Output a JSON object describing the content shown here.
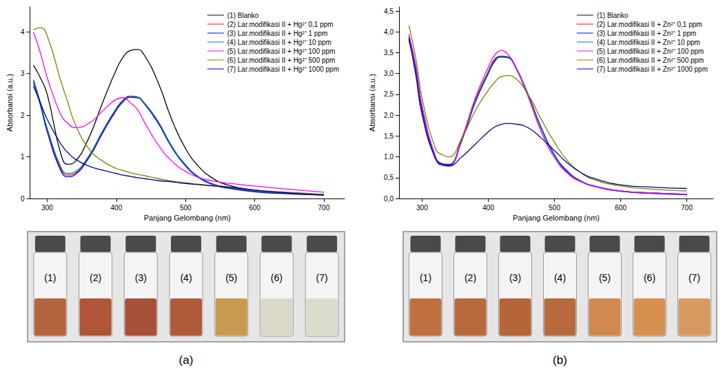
{
  "chart_data": [
    {
      "type": "line",
      "x_label": "Panjang Gelombang (nm)",
      "y_label": "Absorbansi (a.u.)",
      "xlim": [
        275,
        730
      ],
      "xticks": [
        300,
        400,
        500,
        600,
        700
      ],
      "ylim": [
        0,
        4.6
      ],
      "yticks": [
        0,
        1,
        2,
        3,
        4
      ],
      "grid": false,
      "legend": "upper right",
      "x": [
        280,
        290,
        300,
        320,
        330,
        340,
        360,
        380,
        400,
        410,
        420,
        430,
        440,
        460,
        480,
        500,
        520,
        540,
        560,
        600,
        650,
        700
      ],
      "series": [
        {
          "name": "(1) Blanko",
          "color": "#000000",
          "values": [
            3.2,
            2.9,
            2.5,
            1.05,
            0.82,
            0.88,
            1.45,
            2.3,
            3.1,
            3.4,
            3.55,
            3.58,
            3.45,
            2.8,
            1.9,
            1.2,
            0.75,
            0.48,
            0.33,
            0.2,
            0.13,
            0.1
          ]
        },
        {
          "name": "(2) Lar.modifikasi II + Hg²⁺ 0,1 ppm",
          "color": "#ff0000",
          "values": [
            2.85,
            2.3,
            1.65,
            0.7,
            0.56,
            0.6,
            1.0,
            1.6,
            2.15,
            2.35,
            2.45,
            2.44,
            2.3,
            1.85,
            1.25,
            0.8,
            0.5,
            0.34,
            0.26,
            0.17,
            0.12,
            0.09
          ]
        },
        {
          "name": "(3) Lar.modifikasi II + Hg²⁺ 1 ppm",
          "color": "#0000ff",
          "values": [
            2.8,
            2.25,
            1.6,
            0.65,
            0.52,
            0.57,
            0.97,
            1.57,
            2.12,
            2.33,
            2.43,
            2.42,
            2.28,
            1.82,
            1.23,
            0.78,
            0.49,
            0.33,
            0.25,
            0.16,
            0.11,
            0.08
          ]
        },
        {
          "name": "(4) Lar.modifikasi II + Hg²⁺ 10 ppm",
          "color": "#008080",
          "values": [
            2.85,
            2.3,
            1.68,
            0.74,
            0.6,
            0.64,
            1.02,
            1.62,
            2.17,
            2.37,
            2.46,
            2.44,
            2.3,
            1.86,
            1.26,
            0.81,
            0.51,
            0.35,
            0.27,
            0.18,
            0.13,
            0.1
          ]
        },
        {
          "name": "(5) Lar.modifikasi II + Hg²⁺ 100 ppm",
          "color": "#ff00ff",
          "values": [
            4.0,
            3.5,
            2.9,
            2.0,
            1.8,
            1.7,
            1.8,
            2.1,
            2.38,
            2.42,
            2.3,
            2.15,
            1.85,
            1.3,
            0.9,
            0.65,
            0.5,
            0.42,
            0.37,
            0.3,
            0.22,
            0.15
          ]
        },
        {
          "name": "(6) Lar.modifikasi II + Hg²⁺ 500 ppm",
          "color": "#808000",
          "values": [
            4.05,
            4.1,
            3.9,
            2.8,
            2.3,
            1.8,
            1.2,
            0.9,
            0.72,
            0.67,
            0.62,
            0.58,
            0.55,
            0.48,
            0.42,
            0.38,
            0.34,
            0.31,
            0.28,
            0.2,
            0.15,
            0.1
          ]
        },
        {
          "name": "(7) Lar.modifikasi II + Hg²⁺ 1000 ppm",
          "color": "#000080",
          "values": [
            2.7,
            2.3,
            1.9,
            1.3,
            1.1,
            0.95,
            0.78,
            0.68,
            0.6,
            0.56,
            0.53,
            0.5,
            0.48,
            0.43,
            0.4,
            0.36,
            0.33,
            0.3,
            0.28,
            0.2,
            0.13,
            0.08
          ]
        }
      ]
    },
    {
      "type": "line",
      "x_label": "Panjang Gelombang (nm)",
      "y_label": "Absorbansi (a.u.)",
      "xlim": [
        265,
        740
      ],
      "xticks": [
        300,
        400,
        500,
        600,
        700
      ],
      "ylim": [
        0,
        4.6
      ],
      "yticks": [
        {
          "value": 0,
          "label": "0,0"
        },
        {
          "value": 0.5,
          "label": "0,5"
        },
        {
          "value": 1,
          "label": "1,0"
        },
        {
          "value": 1.5,
          "label": "1,5"
        },
        {
          "value": 2,
          "label": "2,0"
        },
        {
          "value": 2.5,
          "label": "2,5"
        },
        {
          "value": 3,
          "label": "3,0"
        },
        {
          "value": 3.5,
          "label": "3,5"
        },
        {
          "value": 4,
          "label": "4,0"
        },
        {
          "value": 4.5,
          "label": "4,5"
        }
      ],
      "grid": false,
      "legend": "upper right",
      "x": [
        280,
        290,
        300,
        320,
        330,
        340,
        360,
        380,
        400,
        410,
        420,
        430,
        440,
        460,
        480,
        500,
        520,
        540,
        560,
        600,
        650,
        700
      ],
      "series": [
        {
          "name": "(1) Blanko",
          "color": "#000000",
          "values": [
            3.9,
            3.2,
            2.2,
            1.0,
            0.82,
            0.8,
            1.4,
            2.3,
            3.0,
            3.3,
            3.4,
            3.38,
            3.2,
            2.5,
            1.7,
            1.05,
            0.65,
            0.42,
            0.3,
            0.18,
            0.13,
            0.1
          ]
        },
        {
          "name": "(2) Lar.modifikasi II + Zn²⁺ 0,1 ppm",
          "color": "#ff0000",
          "values": [
            3.85,
            3.15,
            2.15,
            1.0,
            0.82,
            0.82,
            1.45,
            2.35,
            3.05,
            3.35,
            3.42,
            3.4,
            3.2,
            2.5,
            1.7,
            1.05,
            0.65,
            0.42,
            0.3,
            0.18,
            0.13,
            0.1
          ]
        },
        {
          "name": "(3) Lar.modifikasi II + Zn²⁺ 1 ppm",
          "color": "#0000ff",
          "values": [
            3.8,
            3.1,
            2.1,
            0.98,
            0.8,
            0.8,
            1.42,
            2.33,
            3.03,
            3.33,
            3.4,
            3.38,
            3.18,
            2.48,
            1.68,
            1.03,
            0.63,
            0.41,
            0.29,
            0.17,
            0.12,
            0.09
          ]
        },
        {
          "name": "(4) Lar.modifikasi II + Zn²⁺ 10 ppm",
          "color": "#008080",
          "values": [
            3.9,
            3.18,
            2.18,
            1.02,
            0.84,
            0.82,
            1.43,
            2.32,
            3.02,
            3.32,
            3.41,
            3.39,
            3.2,
            2.5,
            1.7,
            1.05,
            0.65,
            0.42,
            0.3,
            0.18,
            0.13,
            0.1
          ]
        },
        {
          "name": "(5) Lar.modifikasi II + Zn²⁺ 100 ppm",
          "color": "#ff00ff",
          "values": [
            3.95,
            3.2,
            2.2,
            1.0,
            0.8,
            0.78,
            1.45,
            2.4,
            3.15,
            3.45,
            3.55,
            3.45,
            3.2,
            2.45,
            1.6,
            0.98,
            0.6,
            0.4,
            0.3,
            0.18,
            0.13,
            0.1
          ]
        },
        {
          "name": "(6) Lar.modifikasi II + Zn²⁺ 500 ppm",
          "color": "#808000",
          "values": [
            4.15,
            3.4,
            2.4,
            1.2,
            1.05,
            1.0,
            1.45,
            2.1,
            2.6,
            2.8,
            2.93,
            2.95,
            2.9,
            2.5,
            1.9,
            1.35,
            0.9,
            0.62,
            0.45,
            0.3,
            0.22,
            0.18
          ]
        },
        {
          "name": "(7) Lar.modifikasi II + Zn²⁺ 1000 ppm",
          "color": "#000080",
          "values": [
            3.85,
            3.0,
            2.0,
            0.95,
            0.82,
            0.78,
            1.0,
            1.3,
            1.6,
            1.72,
            1.78,
            1.8,
            1.79,
            1.7,
            1.45,
            1.15,
            0.85,
            0.62,
            0.48,
            0.33,
            0.27,
            0.24
          ]
        }
      ]
    }
  ],
  "photos": [
    {
      "caption": "(a)",
      "vials": [
        {
          "label": "(1)",
          "color": "#b5653e"
        },
        {
          "label": "(2)",
          "color": "#b0553a"
        },
        {
          "label": "(3)",
          "color": "#a8503a"
        },
        {
          "label": "(4)",
          "color": "#b05a3c"
        },
        {
          "label": "(5)",
          "color": "#c89a50"
        },
        {
          "label": "(6)",
          "color": "#dcd8c8"
        },
        {
          "label": "(7)",
          "color": "#dcdccc"
        }
      ]
    },
    {
      "caption": "(b)",
      "vials": [
        {
          "label": "(1)",
          "color": "#c07040"
        },
        {
          "label": "(2)",
          "color": "#b86a3c"
        },
        {
          "label": "(3)",
          "color": "#b56538"
        },
        {
          "label": "(4)",
          "color": "#b86a3c"
        },
        {
          "label": "(5)",
          "color": "#d08a50"
        },
        {
          "label": "(6)",
          "color": "#d89050"
        },
        {
          "label": "(7)",
          "color": "#d89a60"
        }
      ]
    }
  ]
}
